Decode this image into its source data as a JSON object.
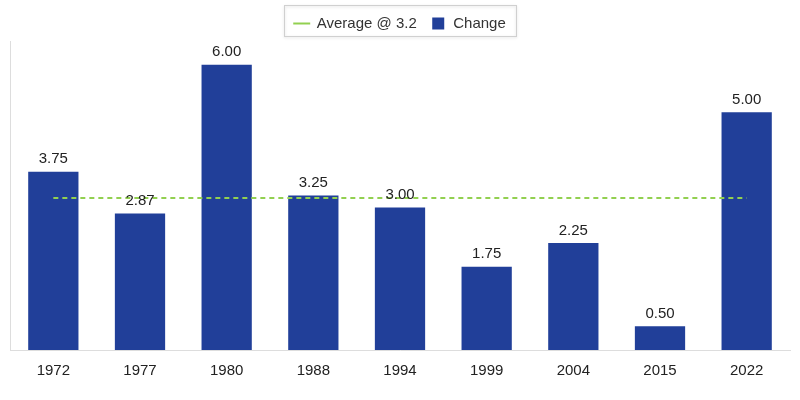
{
  "chart_data": {
    "type": "bar",
    "categories": [
      "1972",
      "1977",
      "1980",
      "1988",
      "1994",
      "1999",
      "2004",
      "2015",
      "2022"
    ],
    "series": [
      {
        "name": "Change",
        "type": "bar",
        "color": "#213f99",
        "values": [
          3.75,
          2.87,
          6.0,
          3.25,
          3.0,
          1.75,
          2.25,
          0.5,
          5.0
        ],
        "value_labels": [
          "3.75",
          "2.87",
          "6.00",
          "3.25",
          "3.00",
          "1.75",
          "2.25",
          "0.50",
          "5.00"
        ],
        "data_labels": true
      },
      {
        "name": "Average @ 3.2",
        "type": "line",
        "color": "#92d050",
        "line_style": "dashed",
        "values": [
          3.2,
          3.2,
          3.2,
          3.2,
          3.2,
          3.2,
          3.2,
          3.2,
          3.2
        ]
      }
    ],
    "ylim": [
      0,
      6.5
    ],
    "grid": false,
    "legend": "top",
    "tick_labels": "x"
  }
}
